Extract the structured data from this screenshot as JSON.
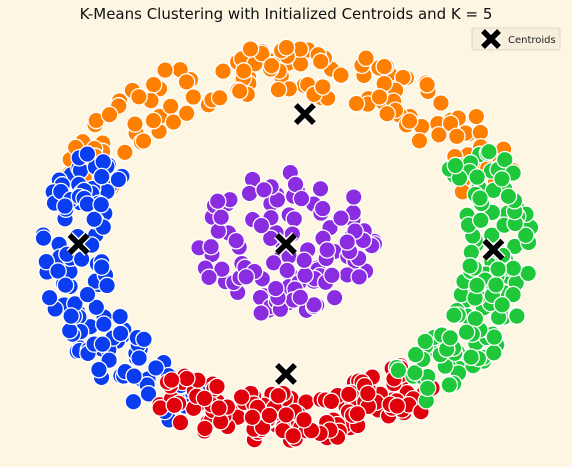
{
  "chart_data": {
    "type": "scatter",
    "title": "K-Means Clustering with Initialized Centroids and K = 5",
    "xlabel": "",
    "ylabel": "",
    "grid": false,
    "axes_visible": false,
    "legend": {
      "position": "top-right",
      "entries": [
        "Centroids"
      ]
    },
    "xlim": [
      -1.12,
      1.12
    ],
    "ylim": [
      -1.12,
      1.12
    ],
    "clusters": [
      {
        "color": "#ff8000",
        "shape": "ring",
        "r_min": 0.78,
        "r_max": 1.05,
        "angle_from_deg": 20,
        "angle_to_deg": 160,
        "approx_points": 150
      },
      {
        "color": "#0b3df0",
        "shape": "ring",
        "r_min": 0.78,
        "r_max": 1.05,
        "angle_from_deg": 150,
        "angle_to_deg": 245,
        "approx_points": 140
      },
      {
        "color": "#e0000c",
        "shape": "ring",
        "r_min": 0.78,
        "r_max": 1.05,
        "angle_from_deg": 235,
        "angle_to_deg": 310,
        "approx_points": 150
      },
      {
        "color": "#1fc83a",
        "shape": "ring",
        "r_min": 0.78,
        "r_max": 1.05,
        "angle_from_deg": 305,
        "angle_to_deg": 390,
        "approx_points": 150
      },
      {
        "color": "#8a2ce0",
        "shape": "disk",
        "r_min": 0.0,
        "r_max": 0.38,
        "angle_from_deg": 0,
        "angle_to_deg": 360,
        "approx_points": 120
      }
    ],
    "centroids": [
      {
        "x": 0.08,
        "y": 0.68,
        "marker": "X",
        "color": "#000000"
      },
      {
        "x": -0.88,
        "y": 0.0,
        "marker": "X",
        "color": "#000000"
      },
      {
        "x": 0.0,
        "y": 0.0,
        "marker": "X",
        "color": "#000000"
      },
      {
        "x": 0.0,
        "y": -0.68,
        "marker": "X",
        "color": "#000000"
      },
      {
        "x": 0.88,
        "y": -0.03,
        "marker": "X",
        "color": "#000000"
      }
    ]
  }
}
